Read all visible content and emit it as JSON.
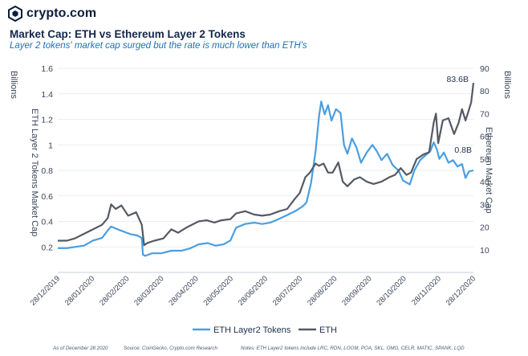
{
  "brand": {
    "name": "crypto.com",
    "logo_icon": "crypto-com-lion-shield-icon"
  },
  "header": {
    "title": "Market Cap: ETH vs Ethereum Layer 2 Tokens",
    "subtitle": "Layer 2 tokens' market cap surged but the rate is much lower than ETH's"
  },
  "footer": {
    "date": "As of December 28 2020",
    "source": "Source: CoinGecko, Crypto.com Research",
    "notes": "Notes: ETH Layer2 tokens include LRC, RDN, LOOM, POA, SKL, OMG, CELR, MATIC, SPANK, LQD"
  },
  "colors": {
    "layer2": "#4a9ee0",
    "eth": "#545a63",
    "grid": "#e3e6ea",
    "text": "#3a4658"
  },
  "chart_data": {
    "type": "line",
    "title": "Market Cap: ETH vs Ethereum Layer 2 Tokens",
    "x_start": "2019-12-28",
    "x_end": "2020-12-28",
    "x_ticks": [
      "28/12/2019",
      "28/01/2020",
      "28/02/2020",
      "28/03/2020",
      "28/04/2020",
      "28/05/2020",
      "28/06/2020",
      "28/07/2020",
      "28/08/2020",
      "28/09/2020",
      "28/10/2020",
      "28/11/2020",
      "28/12/2020"
    ],
    "y_left": {
      "label": "ETH Layer 2 Tokens Market Cap",
      "unit": "Billions",
      "range": [
        0,
        1.6
      ],
      "ticks": [
        "0",
        "0.2",
        "0.4",
        "0.6",
        "0.8",
        "1",
        "1.2",
        "1.4",
        "1.6"
      ]
    },
    "y_right": {
      "label": "Ethereum Market Cap",
      "unit": "Billions",
      "range": [
        0,
        90
      ],
      "ticks": [
        "0",
        "10",
        "20",
        "30",
        "40",
        "50",
        "60",
        "70",
        "80",
        "90"
      ]
    },
    "grid": true,
    "legend_position": "bottom",
    "series": [
      {
        "name": "ETH Layer2 Tokens",
        "axis": "left",
        "points": [
          [
            "2019-12-28",
            0.19
          ],
          [
            "2020-01-05",
            0.19
          ],
          [
            "2020-01-12",
            0.2
          ],
          [
            "2020-01-20",
            0.21
          ],
          [
            "2020-01-28",
            0.25
          ],
          [
            "2020-02-05",
            0.27
          ],
          [
            "2020-02-10",
            0.33
          ],
          [
            "2020-02-13",
            0.36
          ],
          [
            "2020-02-18",
            0.34
          ],
          [
            "2020-02-24",
            0.32
          ],
          [
            "2020-03-01",
            0.3
          ],
          [
            "2020-03-07",
            0.29
          ],
          [
            "2020-03-11",
            0.27
          ],
          [
            "2020-03-12",
            0.14
          ],
          [
            "2020-03-14",
            0.13
          ],
          [
            "2020-03-20",
            0.15
          ],
          [
            "2020-03-28",
            0.15
          ],
          [
            "2020-04-06",
            0.17
          ],
          [
            "2020-04-15",
            0.17
          ],
          [
            "2020-04-23",
            0.19
          ],
          [
            "2020-04-30",
            0.22
          ],
          [
            "2020-05-08",
            0.23
          ],
          [
            "2020-05-15",
            0.21
          ],
          [
            "2020-05-22",
            0.22
          ],
          [
            "2020-05-28",
            0.25
          ],
          [
            "2020-06-02",
            0.35
          ],
          [
            "2020-06-10",
            0.38
          ],
          [
            "2020-06-18",
            0.39
          ],
          [
            "2020-06-25",
            0.38
          ],
          [
            "2020-07-02",
            0.39
          ],
          [
            "2020-07-10",
            0.42
          ],
          [
            "2020-07-17",
            0.45
          ],
          [
            "2020-07-24",
            0.48
          ],
          [
            "2020-07-31",
            0.52
          ],
          [
            "2020-08-03",
            0.55
          ],
          [
            "2020-08-07",
            0.7
          ],
          [
            "2020-08-11",
            0.95
          ],
          [
            "2020-08-14",
            1.22
          ],
          [
            "2020-08-16",
            1.34
          ],
          [
            "2020-08-19",
            1.24
          ],
          [
            "2020-08-22",
            1.31
          ],
          [
            "2020-08-25",
            1.19
          ],
          [
            "2020-08-29",
            1.28
          ],
          [
            "2020-09-02",
            1.25
          ],
          [
            "2020-09-05",
            1.0
          ],
          [
            "2020-09-08",
            0.93
          ],
          [
            "2020-09-12",
            1.05
          ],
          [
            "2020-09-16",
            0.98
          ],
          [
            "2020-09-20",
            0.86
          ],
          [
            "2020-09-25",
            0.94
          ],
          [
            "2020-09-30",
            1.0
          ],
          [
            "2020-10-04",
            0.95
          ],
          [
            "2020-10-08",
            0.88
          ],
          [
            "2020-10-13",
            0.93
          ],
          [
            "2020-10-18",
            0.84
          ],
          [
            "2020-10-23",
            0.8
          ],
          [
            "2020-10-27",
            0.72
          ],
          [
            "2020-11-02",
            0.69
          ],
          [
            "2020-11-06",
            0.8
          ],
          [
            "2020-11-11",
            0.88
          ],
          [
            "2020-11-16",
            0.92
          ],
          [
            "2020-11-20",
            0.95
          ],
          [
            "2020-11-23",
            1.02
          ],
          [
            "2020-11-26",
            0.96
          ],
          [
            "2020-11-28",
            0.89
          ],
          [
            "2020-12-02",
            0.94
          ],
          [
            "2020-12-06",
            0.86
          ],
          [
            "2020-12-10",
            0.88
          ],
          [
            "2020-12-14",
            0.83
          ],
          [
            "2020-12-18",
            0.85
          ],
          [
            "2020-12-21",
            0.74
          ],
          [
            "2020-12-24",
            0.79
          ],
          [
            "2020-12-28",
            0.8
          ]
        ],
        "end_label": "0.8B"
      },
      {
        "name": "ETH",
        "axis": "right",
        "points": [
          [
            "2019-12-28",
            14
          ],
          [
            "2020-01-05",
            14
          ],
          [
            "2020-01-12",
            15
          ],
          [
            "2020-01-20",
            17
          ],
          [
            "2020-01-28",
            19
          ],
          [
            "2020-02-05",
            21
          ],
          [
            "2020-02-10",
            24
          ],
          [
            "2020-02-13",
            30
          ],
          [
            "2020-02-17",
            28
          ],
          [
            "2020-02-22",
            29.5
          ],
          [
            "2020-02-28",
            25
          ],
          [
            "2020-03-06",
            26.5
          ],
          [
            "2020-03-11",
            21
          ],
          [
            "2020-03-13",
            12
          ],
          [
            "2020-03-16",
            13
          ],
          [
            "2020-03-22",
            14
          ],
          [
            "2020-03-30",
            15
          ],
          [
            "2020-04-06",
            19
          ],
          [
            "2020-04-12",
            17.5
          ],
          [
            "2020-04-20",
            20
          ],
          [
            "2020-04-30",
            22.5
          ],
          [
            "2020-05-07",
            23
          ],
          [
            "2020-05-14",
            22
          ],
          [
            "2020-05-20",
            23
          ],
          [
            "2020-05-28",
            23.5
          ],
          [
            "2020-06-02",
            26
          ],
          [
            "2020-06-10",
            27
          ],
          [
            "2020-06-18",
            25.5
          ],
          [
            "2020-06-25",
            25
          ],
          [
            "2020-07-02",
            25.5
          ],
          [
            "2020-07-10",
            27
          ],
          [
            "2020-07-17",
            28
          ],
          [
            "2020-07-23",
            32
          ],
          [
            "2020-07-28",
            35
          ],
          [
            "2020-08-02",
            42
          ],
          [
            "2020-08-06",
            44
          ],
          [
            "2020-08-11",
            48
          ],
          [
            "2020-08-14",
            47
          ],
          [
            "2020-08-18",
            48
          ],
          [
            "2020-08-22",
            44
          ],
          [
            "2020-08-26",
            44
          ],
          [
            "2020-08-31",
            48.5
          ],
          [
            "2020-09-04",
            40
          ],
          [
            "2020-09-08",
            38
          ],
          [
            "2020-09-14",
            41
          ],
          [
            "2020-09-19",
            42
          ],
          [
            "2020-09-25",
            40
          ],
          [
            "2020-10-01",
            39
          ],
          [
            "2020-10-08",
            40
          ],
          [
            "2020-10-15",
            42
          ],
          [
            "2020-10-20",
            43
          ],
          [
            "2020-10-25",
            46
          ],
          [
            "2020-10-30",
            43
          ],
          [
            "2020-11-03",
            44
          ],
          [
            "2020-11-08",
            50
          ],
          [
            "2020-11-14",
            52
          ],
          [
            "2020-11-19",
            53
          ],
          [
            "2020-11-23",
            66
          ],
          [
            "2020-11-25",
            70
          ],
          [
            "2020-11-27",
            57
          ],
          [
            "2020-12-01",
            67
          ],
          [
            "2020-12-06",
            68
          ],
          [
            "2020-12-11",
            61
          ],
          [
            "2020-12-15",
            66
          ],
          [
            "2020-12-18",
            72
          ],
          [
            "2020-12-21",
            67
          ],
          [
            "2020-12-23",
            70
          ],
          [
            "2020-12-26",
            75
          ],
          [
            "2020-12-28",
            83.6
          ]
        ],
        "end_label": "83.6B"
      }
    ]
  }
}
